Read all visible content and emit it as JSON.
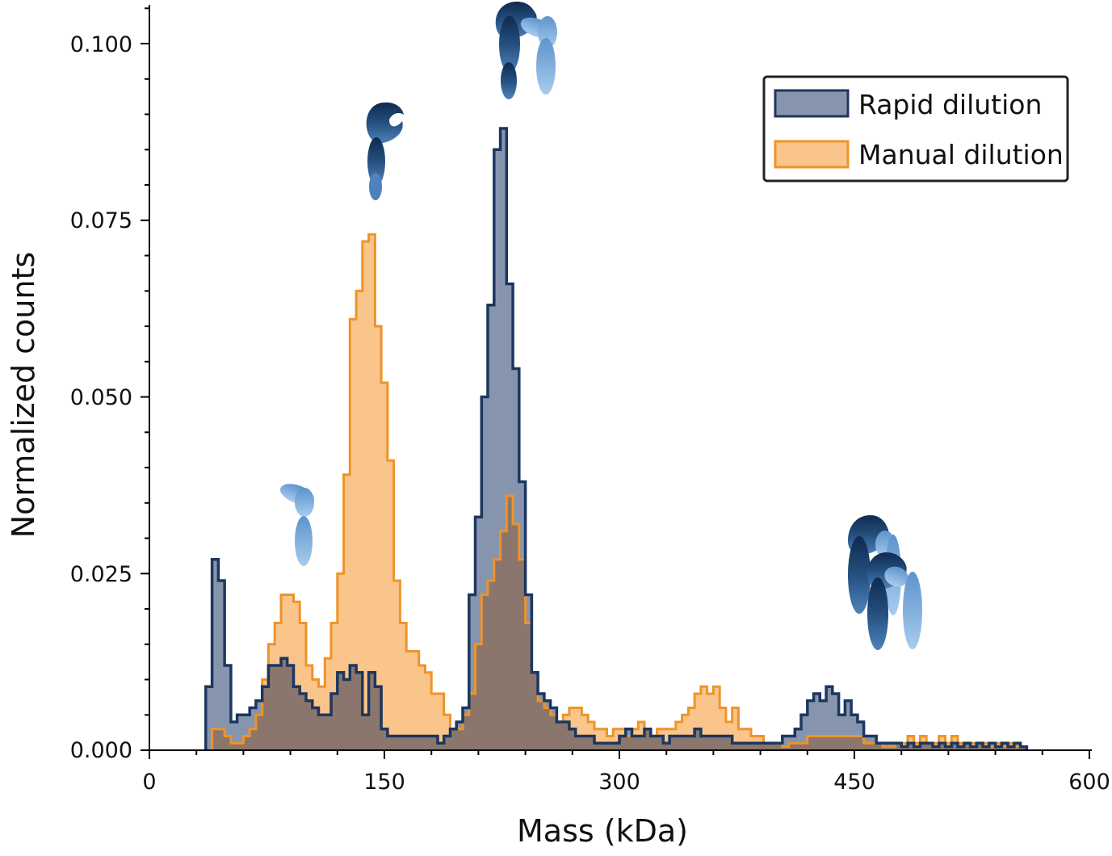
{
  "chart_data": {
    "type": "histogram",
    "title": "",
    "xlabel": "Mass (kDa)",
    "ylabel": "Normalized counts",
    "xlim": [
      0,
      600
    ],
    "ylim": [
      0,
      0.1055
    ],
    "xticks": [
      0,
      150,
      300,
      450,
      600
    ],
    "xtick_labels": [
      "0",
      "150",
      "300",
      "450",
      "600"
    ],
    "yticks": [
      0,
      0.025,
      0.05,
      0.075,
      0.1
    ],
    "ytick_labels": [
      "0.000",
      "0.025",
      "0.050",
      "0.075",
      "0.100"
    ],
    "bin_width": 4,
    "x_start": 36,
    "legend": {
      "position": "top-right"
    },
    "series": [
      {
        "name": "Rapid dilution",
        "edge_color": "#1c375f",
        "fill_color": "#5e7291",
        "values": [
          0.009,
          0.027,
          0.024,
          0.012,
          0.004,
          0.005,
          0.005,
          0.006,
          0.007,
          0.009,
          0.012,
          0.012,
          0.013,
          0.012,
          0.009,
          0.008,
          0.007,
          0.006,
          0.005,
          0.005,
          0.008,
          0.011,
          0.01,
          0.012,
          0.011,
          0.005,
          0.011,
          0.009,
          0.003,
          0.002,
          0.002,
          0.002,
          0.002,
          0.002,
          0.002,
          0.002,
          0.002,
          0.001,
          0.002,
          0.003,
          0.004,
          0.006,
          0.022,
          0.033,
          0.05,
          0.063,
          0.085,
          0.088,
          0.066,
          0.054,
          0.038,
          0.022,
          0.011,
          0.008,
          0.007,
          0.006,
          0.004,
          0.004,
          0.003,
          0.002,
          0.002,
          0.002,
          0.001,
          0.001,
          0.001,
          0.001,
          0.002,
          0.003,
          0.002,
          0.002,
          0.003,
          0.002,
          0.002,
          0.001,
          0.002,
          0.002,
          0.002,
          0.002,
          0.003,
          0.002,
          0.002,
          0.002,
          0.002,
          0.002,
          0.001,
          0.001,
          0.001,
          0.001,
          0.001,
          0.001,
          0.001,
          0.001,
          0.002,
          0.002,
          0.003,
          0.005,
          0.007,
          0.008,
          0.007,
          0.009,
          0.008,
          0.005,
          0.007,
          0.005,
          0.004,
          0.002,
          0.002,
          0.001,
          0.001,
          0.001,
          0.001,
          0.0005,
          0.001,
          0.0005,
          0.001,
          0.001,
          0.0005,
          0.001,
          0.0005,
          0.001,
          0.0005,
          0.001,
          0.0005,
          0.001,
          0.0005,
          0.001,
          0.0005,
          0.001,
          0.0005,
          0.001,
          0.0005
        ]
      },
      {
        "name": "Manual dilution",
        "edge_color": "#ef9328",
        "fill_color": "#f9c58b",
        "values": [
          0,
          0.003,
          0.003,
          0.002,
          0.001,
          0.001,
          0.002,
          0.003,
          0.005,
          0.01,
          0.015,
          0.018,
          0.022,
          0.022,
          0.021,
          0.018,
          0.012,
          0.01,
          0.009,
          0.013,
          0.018,
          0.025,
          0.039,
          0.061,
          0.065,
          0.072,
          0.073,
          0.06,
          0.052,
          0.041,
          0.024,
          0.018,
          0.014,
          0.014,
          0.012,
          0.011,
          0.008,
          0.008,
          0.005,
          0.003,
          0.003,
          0.005,
          0.008,
          0.015,
          0.022,
          0.024,
          0.027,
          0.031,
          0.036,
          0.032,
          0.027,
          0.018,
          0.011,
          0.007,
          0.006,
          0.005,
          0.004,
          0.005,
          0.006,
          0.006,
          0.005,
          0.004,
          0.003,
          0.003,
          0.002,
          0.003,
          0.003,
          0.002,
          0.003,
          0.004,
          0.003,
          0.002,
          0.003,
          0.003,
          0.003,
          0.004,
          0.005,
          0.006,
          0.008,
          0.009,
          0.008,
          0.009,
          0.006,
          0.004,
          0.006,
          0.003,
          0.003,
          0.002,
          0.002,
          0.001,
          0.001,
          0.001,
          0.0005,
          0.001,
          0.001,
          0.001,
          0.002,
          0.002,
          0.002,
          0.002,
          0.002,
          0.002,
          0.002,
          0.002,
          0.002,
          0.001,
          0.001,
          0.001,
          0.0005,
          0.0005,
          0.001,
          0.001,
          0.002,
          0.001,
          0.002,
          0.001,
          0.001,
          0.002,
          0.001,
          0.002,
          0.001,
          0.001,
          0.001,
          0.001,
          0.001,
          0.0005,
          0.001,
          0.0005,
          0.001,
          0.0005,
          0.0005
        ]
      }
    ],
    "overlap_color": "#8a766c",
    "annotations": [
      {
        "name": "monomer-light-chain-protein-icon",
        "at_mass": 97
      },
      {
        "name": "monomer-heavy-chain-protein-icon",
        "at_mass": 145
      },
      {
        "name": "dimer-protein-icon",
        "at_mass": 245
      },
      {
        "name": "tetramer-protein-icon",
        "at_mass": 475
      }
    ]
  }
}
